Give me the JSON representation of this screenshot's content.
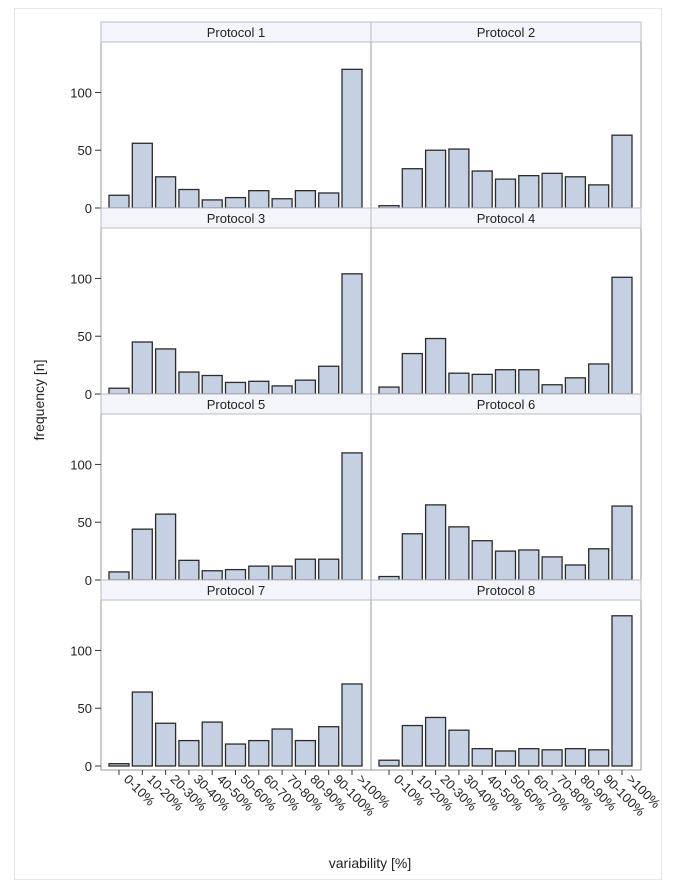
{
  "chart_data": {
    "type": "bar",
    "layout": "facet-grid",
    "facet_rows": 4,
    "facet_cols": 2,
    "xlabel": "variability [%]",
    "ylabel": "frequency [n]",
    "ylim": [
      0,
      135
    ],
    "yticks": [
      0,
      50,
      100
    ],
    "categories": [
      "0-10%",
      "10-20%",
      "20-30%",
      "30-40%",
      "40-50%",
      "50-60%",
      "60-70%",
      "70-80%",
      "80-90%",
      "90-100%",
      ">100%"
    ],
    "bar_color": "#c5d1e3",
    "bar_edge_color": "#2b2b2b",
    "panels": [
      {
        "title": "Protocol 1",
        "values": [
          11,
          56,
          27,
          16,
          7,
          9,
          15,
          8,
          15,
          13,
          120
        ]
      },
      {
        "title": "Protocol 2",
        "values": [
          2,
          34,
          50,
          51,
          32,
          25,
          28,
          30,
          27,
          20,
          63
        ]
      },
      {
        "title": "Protocol 3",
        "values": [
          5,
          45,
          39,
          19,
          16,
          10,
          11,
          7,
          12,
          24,
          104
        ]
      },
      {
        "title": "Protocol 4",
        "values": [
          6,
          35,
          48,
          18,
          17,
          21,
          21,
          8,
          14,
          26,
          101
        ]
      },
      {
        "title": "Protocol 5",
        "values": [
          7,
          44,
          57,
          17,
          8,
          9,
          12,
          12,
          18,
          18,
          110
        ]
      },
      {
        "title": "Protocol 6",
        "values": [
          3,
          40,
          65,
          46,
          34,
          25,
          26,
          20,
          13,
          27,
          64
        ]
      },
      {
        "title": "Protocol 7",
        "values": [
          2,
          64,
          37,
          22,
          38,
          19,
          22,
          32,
          22,
          34,
          71
        ]
      },
      {
        "title": "Protocol 8",
        "values": [
          5,
          35,
          42,
          31,
          15,
          13,
          15,
          14,
          15,
          14,
          130
        ]
      }
    ]
  }
}
